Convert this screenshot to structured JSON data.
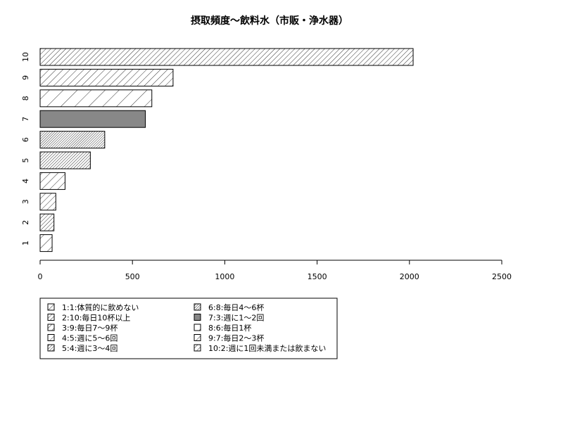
{
  "chart_data": {
    "type": "bar",
    "orientation": "horizontal",
    "title": "摂取頻度～飲料水（市販・浄水器）",
    "xlabel": "",
    "ylabel": "",
    "categories": [
      "1",
      "2",
      "3",
      "4",
      "5",
      "6",
      "7",
      "8",
      "9",
      "10"
    ],
    "values": [
      65,
      75,
      85,
      135,
      272,
      350,
      570,
      605,
      720,
      2020
    ],
    "xlim": [
      0,
      2500
    ],
    "xticks": [
      0,
      500,
      1000,
      1500,
      2000,
      2500
    ],
    "grid": false,
    "legend_position": "bottom-left",
    "legend": [
      "1:1:体質的に飲めない",
      "2:10:毎日10杯以上",
      "3:9:毎日7～9杯",
      "4:5:週に5～6回",
      "5:4:週に3～4回",
      "6:8:毎日4～6杯",
      "7:3:週に1～2回",
      "8:6:毎日1杯",
      "9:7:毎日2～3杯",
      "10:2:週に1回未満または飲まない"
    ]
  }
}
